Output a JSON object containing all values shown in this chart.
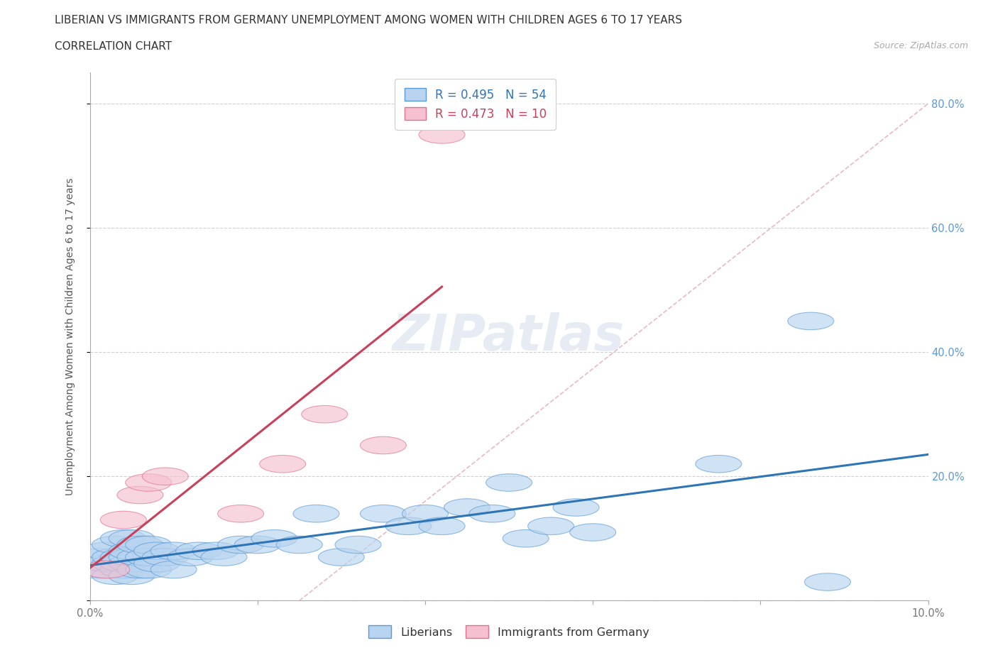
{
  "title_line1": "LIBERIAN VS IMMIGRANTS FROM GERMANY UNEMPLOYMENT AMONG WOMEN WITH CHILDREN AGES 6 TO 17 YEARS",
  "title_line2": "CORRELATION CHART",
  "source_text": "Source: ZipAtlas.com",
  "ylabel": "Unemployment Among Women with Children Ages 6 to 17 years",
  "xlim": [
    0.0,
    0.1
  ],
  "ylim": [
    0.0,
    0.85
  ],
  "yticks": [
    0.0,
    0.2,
    0.4,
    0.6,
    0.8
  ],
  "yticklabels_right": [
    "",
    "20.0%",
    "40.0%",
    "60.0%",
    "80.0%"
  ],
  "xticks": [
    0.0,
    0.02,
    0.04,
    0.06,
    0.08,
    0.1
  ],
  "xticklabels": [
    "0.0%",
    "",
    "",
    "",
    "",
    "10.0%"
  ],
  "liberian_R": 0.495,
  "liberian_N": 54,
  "germany_R": 0.473,
  "germany_N": 10,
  "liberian_color": "#b8d4f0",
  "liberian_edge_color": "#5b9bd5",
  "liberian_line_color": "#2e75b6",
  "germany_color": "#f5c0d0",
  "germany_edge_color": "#e07090",
  "germany_line_color": "#c8405a",
  "ref_line_color": "#e8b0c0",
  "watermark": "ZIPatlas",
  "liberian_x": [
    0.001,
    0.001,
    0.002,
    0.002,
    0.002,
    0.003,
    0.003,
    0.003,
    0.003,
    0.004,
    0.004,
    0.004,
    0.004,
    0.005,
    0.005,
    0.005,
    0.005,
    0.005,
    0.006,
    0.006,
    0.006,
    0.007,
    0.007,
    0.007,
    0.008,
    0.008,
    0.009,
    0.01,
    0.01,
    0.012,
    0.013,
    0.015,
    0.016,
    0.018,
    0.02,
    0.022,
    0.025,
    0.027,
    0.03,
    0.032,
    0.035,
    0.038,
    0.04,
    0.042,
    0.045,
    0.048,
    0.05,
    0.052,
    0.055,
    0.058,
    0.06,
    0.075,
    0.086,
    0.088
  ],
  "liberian_y": [
    0.05,
    0.07,
    0.05,
    0.06,
    0.08,
    0.04,
    0.06,
    0.07,
    0.09,
    0.05,
    0.06,
    0.07,
    0.1,
    0.04,
    0.06,
    0.07,
    0.08,
    0.1,
    0.05,
    0.07,
    0.09,
    0.05,
    0.07,
    0.09,
    0.06,
    0.08,
    0.07,
    0.05,
    0.08,
    0.07,
    0.08,
    0.08,
    0.07,
    0.09,
    0.09,
    0.1,
    0.09,
    0.14,
    0.07,
    0.09,
    0.14,
    0.12,
    0.14,
    0.12,
    0.15,
    0.14,
    0.19,
    0.1,
    0.12,
    0.15,
    0.11,
    0.22,
    0.45,
    0.03
  ],
  "germany_x": [
    0.002,
    0.004,
    0.006,
    0.007,
    0.009,
    0.018,
    0.023,
    0.028,
    0.035,
    0.042
  ],
  "germany_y": [
    0.05,
    0.13,
    0.17,
    0.19,
    0.2,
    0.14,
    0.22,
    0.3,
    0.25,
    0.75
  ]
}
